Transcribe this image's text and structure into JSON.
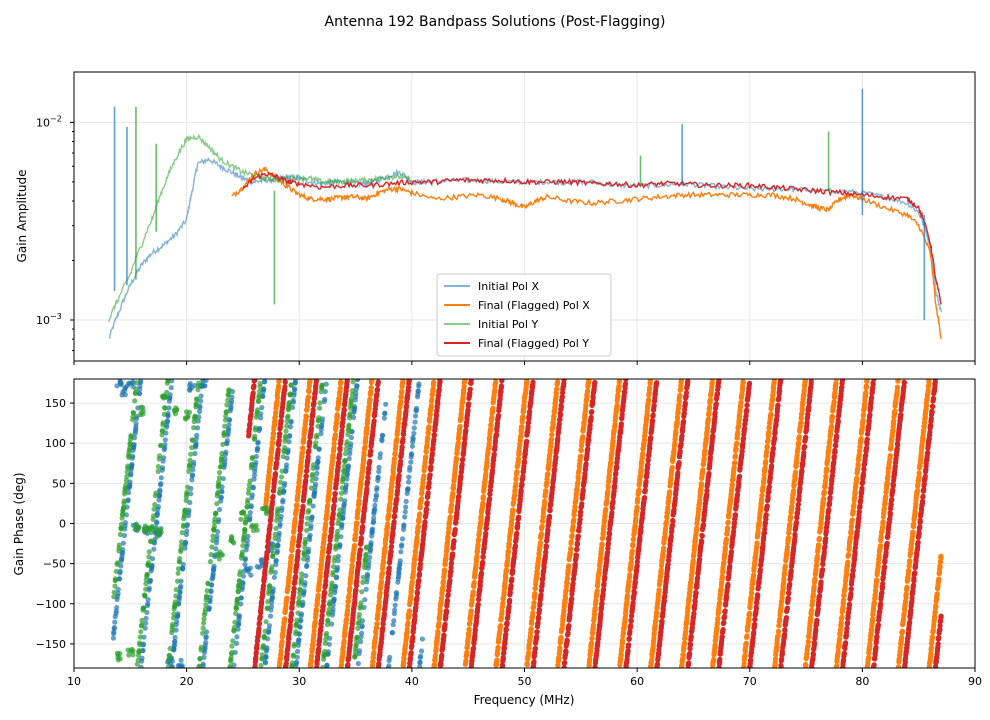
{
  "figure": {
    "title": "Antenna 192 Bandpass Solutions (Post-Flagging)"
  },
  "colors": {
    "polx_initial": "#1f77b4",
    "polx_final": "#ff7f0e",
    "poly_initial": "#2ca02c",
    "poly_final": "#d62728",
    "grid": "#e6e6e6"
  },
  "chart_data": [
    {
      "type": "line",
      "title": "",
      "xlabel": "",
      "ylabel": "Gain Amplitude",
      "yscale": "log",
      "xlim": [
        10,
        90
      ],
      "ylim": [
        0.00062,
        0.018
      ],
      "yticks": [
        {
          "value": 0.001,
          "base": "10",
          "exp": "−3"
        },
        {
          "value": 0.01,
          "base": "10",
          "exp": "−2"
        }
      ],
      "grid": true,
      "legend": {
        "placement": "lower-center",
        "entries": [
          "Initial Pol X",
          "Final (Flagged) Pol X",
          "Initial Pol Y",
          "Final (Flagged) Pol Y"
        ]
      },
      "series": [
        {
          "name": "Initial Pol X",
          "x": [
            13.1,
            14,
            15,
            16,
            17,
            18,
            19,
            20,
            20.5,
            21,
            22,
            23,
            24,
            25,
            26,
            27,
            28,
            29,
            30,
            31,
            32,
            33,
            34,
            35,
            36,
            37,
            38,
            39,
            40,
            41,
            42,
            44,
            46,
            48,
            50,
            52,
            54,
            56,
            58,
            60,
            62,
            64,
            66,
            68,
            70,
            72,
            74,
            76,
            78,
            80,
            82,
            84,
            85,
            86,
            86.5,
            87
          ],
          "y": [
            0.0008,
            0.0011,
            0.0015,
            0.0019,
            0.0022,
            0.0024,
            0.0027,
            0.0032,
            0.0045,
            0.0062,
            0.0065,
            0.006,
            0.0056,
            0.0052,
            0.005,
            0.0051,
            0.0052,
            0.0053,
            0.0052,
            0.005,
            0.0049,
            0.005,
            0.005,
            0.0049,
            0.0049,
            0.0051,
            0.0054,
            0.0056,
            0.005,
            0.005,
            0.005,
            0.0051,
            0.0051,
            0.005,
            0.005,
            0.005,
            0.005,
            0.005,
            0.0048,
            0.0048,
            0.0048,
            0.0049,
            0.0048,
            0.0047,
            0.0046,
            0.0046,
            0.0046,
            0.0045,
            0.0045,
            0.0044,
            0.0042,
            0.0039,
            0.0035,
            0.0024,
            0.0014,
            0.0011
          ]
        },
        {
          "name": "Final (Flagged) Pol X",
          "x": [
            24,
            25,
            26,
            27,
            28,
            29,
            30,
            31,
            32,
            33,
            34,
            35,
            36,
            37,
            38,
            39,
            40,
            42,
            44,
            46,
            48,
            49,
            50,
            51,
            52,
            54,
            56,
            58,
            60,
            62,
            64,
            66,
            68,
            70,
            72,
            74,
            75,
            76,
            77,
            78,
            79,
            80,
            82,
            84,
            85,
            86,
            86.5,
            87
          ],
          "y": [
            0.0042,
            0.0047,
            0.0055,
            0.0058,
            0.0052,
            0.0047,
            0.0043,
            0.0041,
            0.0041,
            0.0041,
            0.0042,
            0.0042,
            0.0041,
            0.0044,
            0.0046,
            0.0046,
            0.0044,
            0.0041,
            0.0042,
            0.0043,
            0.0041,
            0.0039,
            0.0037,
            0.004,
            0.0042,
            0.004,
            0.0039,
            0.004,
            0.0041,
            0.0042,
            0.0043,
            0.0043,
            0.0043,
            0.0043,
            0.0043,
            0.0041,
            0.0039,
            0.0037,
            0.0036,
            0.0041,
            0.0043,
            0.0041,
            0.0037,
            0.0034,
            0.003,
            0.0022,
            0.0012,
            0.0008
          ]
        },
        {
          "name": "Initial Pol Y",
          "x": [
            13.1,
            14,
            15,
            16,
            17,
            18,
            19,
            20,
            21,
            22,
            23,
            24,
            25,
            26,
            27,
            28,
            29,
            30,
            31,
            32,
            33,
            34,
            35,
            36,
            37,
            38,
            39,
            40
          ],
          "y": [
            0.001,
            0.0013,
            0.0017,
            0.0024,
            0.0033,
            0.0048,
            0.0065,
            0.0082,
            0.0085,
            0.0075,
            0.0065,
            0.006,
            0.0056,
            0.0054,
            0.0052,
            0.0051,
            0.0052,
            0.0053,
            0.0052,
            0.005,
            0.005,
            0.005,
            0.0051,
            0.0051,
            0.0052,
            0.0053,
            0.0053,
            0.0051
          ]
        },
        {
          "name": "Final (Flagged) Pol Y",
          "x": [
            25,
            26,
            27,
            28,
            29,
            30,
            32,
            34,
            36,
            38,
            40,
            42,
            44,
            46,
            48,
            50,
            52,
            54,
            56,
            58,
            60,
            62,
            64,
            66,
            68,
            70,
            72,
            74,
            76,
            78,
            80,
            82,
            84,
            85,
            86,
            86.5,
            87
          ],
          "y": [
            0.0046,
            0.0052,
            0.0055,
            0.0053,
            0.005,
            0.0049,
            0.0047,
            0.0048,
            0.0048,
            0.0049,
            0.005,
            0.005,
            0.0051,
            0.0051,
            0.0051,
            0.005,
            0.005,
            0.005,
            0.0049,
            0.0049,
            0.0048,
            0.0049,
            0.0049,
            0.0048,
            0.0048,
            0.0048,
            0.0047,
            0.0046,
            0.0045,
            0.0044,
            0.0043,
            0.0042,
            0.0041,
            0.0037,
            0.0025,
            0.0016,
            0.0012
          ]
        }
      ],
      "spikes": [
        {
          "series": "Initial Pol X",
          "x": 13.6,
          "from": 0.0014,
          "to": 0.012
        },
        {
          "series": "Initial Pol X",
          "x": 14.7,
          "from": 0.0015,
          "to": 0.0095
        },
        {
          "series": "Initial Pol X",
          "x": 64,
          "from": 0.0048,
          "to": 0.0098
        },
        {
          "series": "Initial Pol X",
          "x": 80,
          "from": 0.0034,
          "to": 0.0148
        },
        {
          "series": "Initial Pol X",
          "x": 85.5,
          "from": 0.001,
          "to": 0.0034
        },
        {
          "series": "Initial Pol Y",
          "x": 15.5,
          "from": 0.0016,
          "to": 0.012
        },
        {
          "series": "Initial Pol Y",
          "x": 17.3,
          "from": 0.0028,
          "to": 0.0078
        },
        {
          "series": "Initial Pol Y",
          "x": 27.8,
          "from": 0.0012,
          "to": 0.0045
        },
        {
          "series": "Initial Pol Y",
          "x": 60.3,
          "from": 0.0048,
          "to": 0.0068
        },
        {
          "series": "Initial Pol Y",
          "x": 77,
          "from": 0.0045,
          "to": 0.009
        }
      ]
    },
    {
      "type": "scatter",
      "title": "",
      "xlabel": "Frequency (MHz)",
      "ylabel": "Gain Phase (deg)",
      "xlim": [
        10,
        90
      ],
      "ylim": [
        -180,
        180
      ],
      "xticks": [
        10,
        20,
        30,
        40,
        50,
        60,
        70,
        80,
        90
      ],
      "yticks": [
        -150,
        -100,
        -50,
        0,
        50,
        100,
        150
      ],
      "grid": true,
      "phase_wrap": {
        "delay_deg_per_mhz": 131,
        "wrap": [
          -180,
          180
        ]
      },
      "series": [
        {
          "name": "Initial Pol X",
          "x_range": [
            13.5,
            41
          ],
          "phase0": -140,
          "extra_points": [
            [
              14,
              175
            ],
            [
              14.5,
              165
            ],
            [
              15,
              175
            ],
            [
              15.5,
              -5
            ],
            [
              16.5,
              -8
            ],
            [
              17.5,
              -10
            ],
            [
              18.5,
              -170
            ],
            [
              19.5,
              -175
            ],
            [
              20.5,
              170
            ],
            [
              21.5,
              175
            ],
            [
              27.5,
              -30
            ],
            [
              26.5,
              -50
            ],
            [
              25.5,
              -60
            ]
          ]
        },
        {
          "name": "Final (Flagged) Pol X",
          "x_range": [
            27,
            87
          ],
          "phase0": 20
        },
        {
          "name": "Initial Pol Y",
          "x_range": [
            13.5,
            36
          ],
          "phase0": -95,
          "extra_points": [
            [
              14,
              -165
            ],
            [
              15,
              -160
            ],
            [
              16,
              140
            ],
            [
              15.5,
              -5
            ],
            [
              16.5,
              -8
            ],
            [
              17.5,
              -12
            ],
            [
              18,
              155
            ],
            [
              19,
              140
            ],
            [
              20,
              135
            ],
            [
              23,
              -40
            ],
            [
              24,
              -20
            ],
            [
              25,
              10
            ],
            [
              26,
              -5
            ],
            [
              27,
              15
            ]
          ]
        },
        {
          "name": "Final (Flagged) Pol Y",
          "x_range": [
            25.5,
            87
          ],
          "phase0": 110
        }
      ]
    }
  ]
}
